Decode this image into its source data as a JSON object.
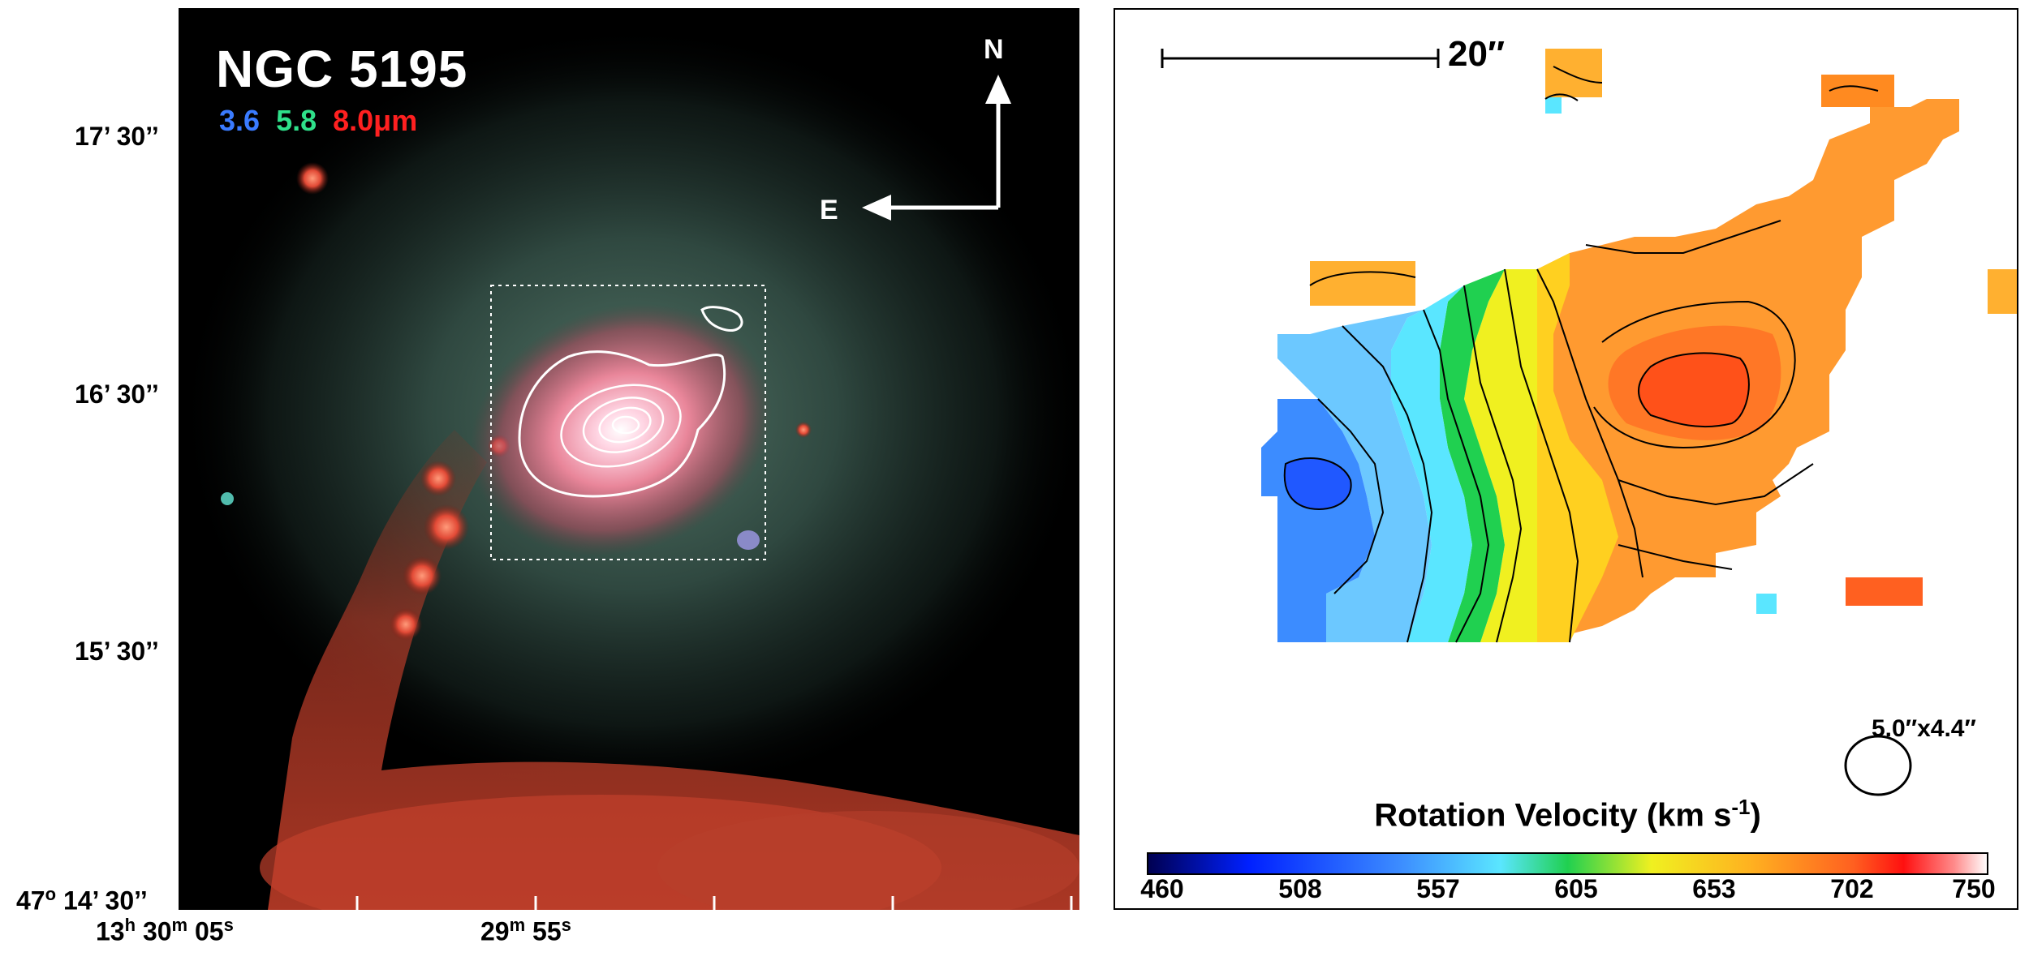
{
  "ir_image": {
    "title": "NGC 5195",
    "bands": [
      {
        "label": "3.6",
        "color": "#3a7bff"
      },
      {
        "label": "5.8",
        "color": "#2fe08a"
      },
      {
        "label": "8.0μm",
        "color": "#ff2020"
      }
    ],
    "compass": {
      "north": "N",
      "east": "E"
    },
    "dec_labels": [
      "17’ 30’’",
      "16’ 30’’",
      "15’ 30’’",
      "14’ 30’’"
    ],
    "dec_label_prefix": "47",
    "dec_label_prefix_sup": "o",
    "ra_labels": [
      {
        "main": "13",
        "sup_h": "h",
        "mid": " 30",
        "sup_m": "m",
        "tail": " 05",
        "sup_s": "s"
      },
      {
        "main": "29",
        "sup_m": "m",
        "tail": " 55",
        "sup_s": "s"
      }
    ]
  },
  "velocity_map": {
    "scale_bar_label": "20″",
    "beam_label": "5.0″x4.4″",
    "colorbar": {
      "title": "Rotation Velocity (km s",
      "title_sup": "-1",
      "title_close": ")",
      "ticks": [
        "460",
        "508",
        "557",
        "605",
        "653",
        "702",
        "750"
      ],
      "range": [
        460,
        750
      ],
      "colors": [
        "#000050",
        "#0020ff",
        "#3c8cff",
        "#5ae6ff",
        "#20d050",
        "#f0f020",
        "#ffb020",
        "#ff6020",
        "#ff1010",
        "#ff8a8a",
        "#ffffff"
      ]
    }
  }
}
